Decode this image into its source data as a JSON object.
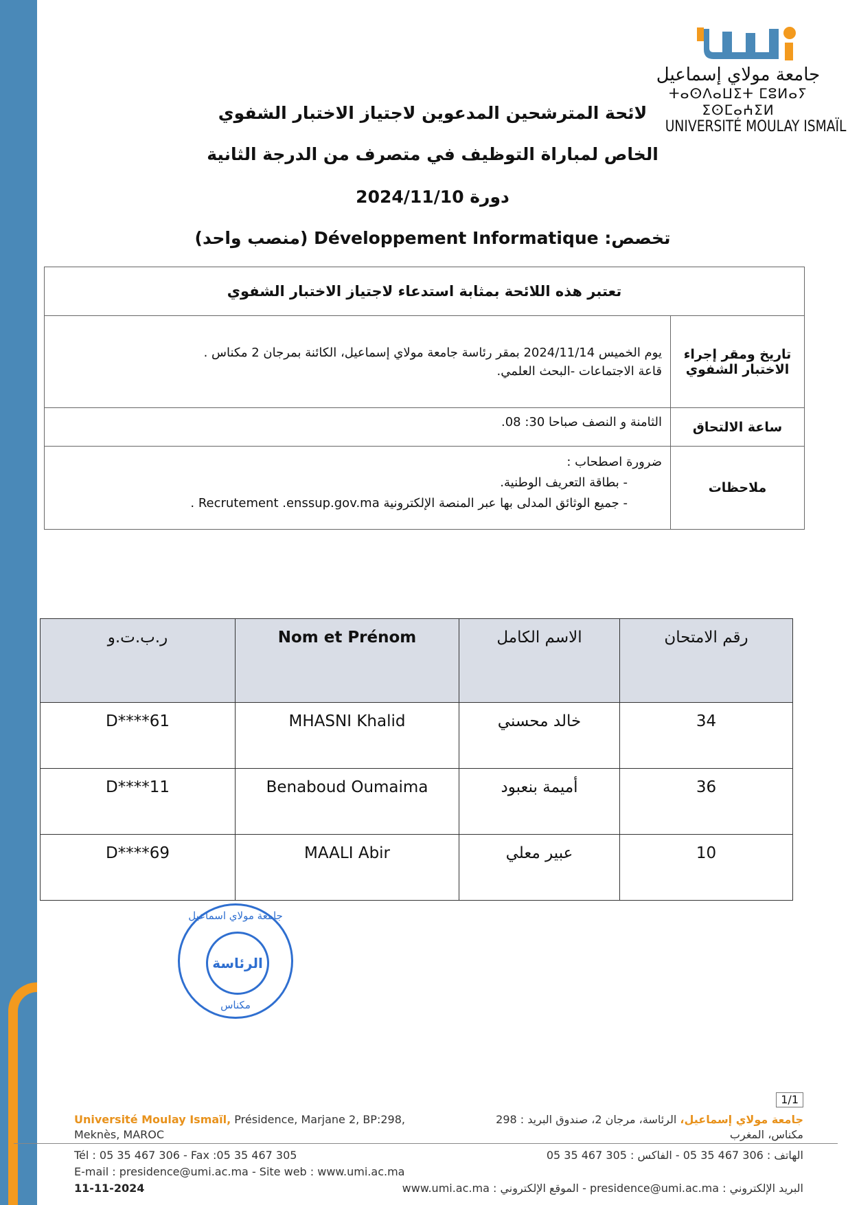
{
  "colors": {
    "left_bar": "#4a89b8",
    "accent_orange": "#f39a1e",
    "stamp_blue": "#2f6fd0",
    "table_header_bg": "#d9dde6"
  },
  "logo": {
    "mark_text": "umi",
    "arabic": "جامعة مولاي إسماعيل",
    "tifinagh": "ⵜⴰⵙⴷⴰⵡⵉⵜ ⵎⵓⵍⴰⵢ ⵉⵙⵎⴰⵄⵉⵍ",
    "french": "UNIVERSITÉ MOULAY ISMAÏL"
  },
  "title": {
    "line1": "لائحة المترشحين المدعوين لاجتياز الاختبار الشفوي",
    "line2": "الخاص لمباراة التوظيف في متصرف من الدرجة الثانية",
    "line3": "دورة 2024/11/10",
    "line4": "تخصص: Développement Informatique (منصب واحد)"
  },
  "info": {
    "header": "تعتبر هذه اللائحة بمثابة استدعاء لاجتياز الاختبار الشفوي",
    "rows": [
      {
        "label": "تاريخ ومقر إجراء الاختبار الشفوي",
        "lines": [
          "يوم الخميس 2024/11/14 بمقر رئاسة جامعة مولاي إسماعيل، الكائنة بمرجان 2 مكناس .",
          "قاعة الاجتماعات -البحث العلمي."
        ]
      },
      {
        "label": "ساعة الالتحاق",
        "lines": [
          "الثامنة و النصف صباحا   30: 08."
        ]
      },
      {
        "label": "ملاحظات",
        "lines": [
          "ضرورة اصطحاب :",
          "-   بطاقة التعريف الوطنية.",
          "-   جميع الوثائق المدلى بها عبر المنصة الإلكترونية Recrutement .enssup.gov.ma ."
        ]
      }
    ]
  },
  "candidates": {
    "headers": [
      "رقم الامتحان",
      "الاسم الكامل",
      "Nom et Prénom",
      "ر.ب.ت.و"
    ],
    "rows": [
      [
        "34",
        "خالد محسني",
        "MHASNI Khalid",
        "D****61"
      ],
      [
        "36",
        "أميمة بنعبود",
        "Benaboud Oumaima",
        "D****11"
      ],
      [
        "10",
        "عبير معلي",
        "MAALI Abir",
        "D****69"
      ]
    ]
  },
  "stamp": {
    "top": "جامعة مولاي اسماعيل",
    "center": "الرئاسة",
    "bottom": "مكناس"
  },
  "footer": {
    "left_name": "Université Moulay Ismaïl,",
    "left_line1": " Présidence, Marjane 2, BP:298,",
    "left_line2": "Meknès, MAROC",
    "left_line3": "Tél : 05 35 467 306 - Fax :05 35 467 305",
    "left_line4": "E-mail : presidence@umi.ac.ma - Site web : www.umi.ac.ma",
    "right_name": "جامعة مولاي إسماعيل،",
    "right_line1": " الرئاسة، مرجان 2، صندوق البريد : 298",
    "right_line2": "مكناس، المغرب",
    "right_line3": "الهاتف : 306 467 35 05 - الفاكس : 305 467 35 05",
    "right_line4": "البريد الإلكتروني : presidence@umi.ac.ma - الموقع الإلكتروني : www.umi.ac.ma",
    "date_stamp": "11-11-2024",
    "page": "1/1"
  }
}
